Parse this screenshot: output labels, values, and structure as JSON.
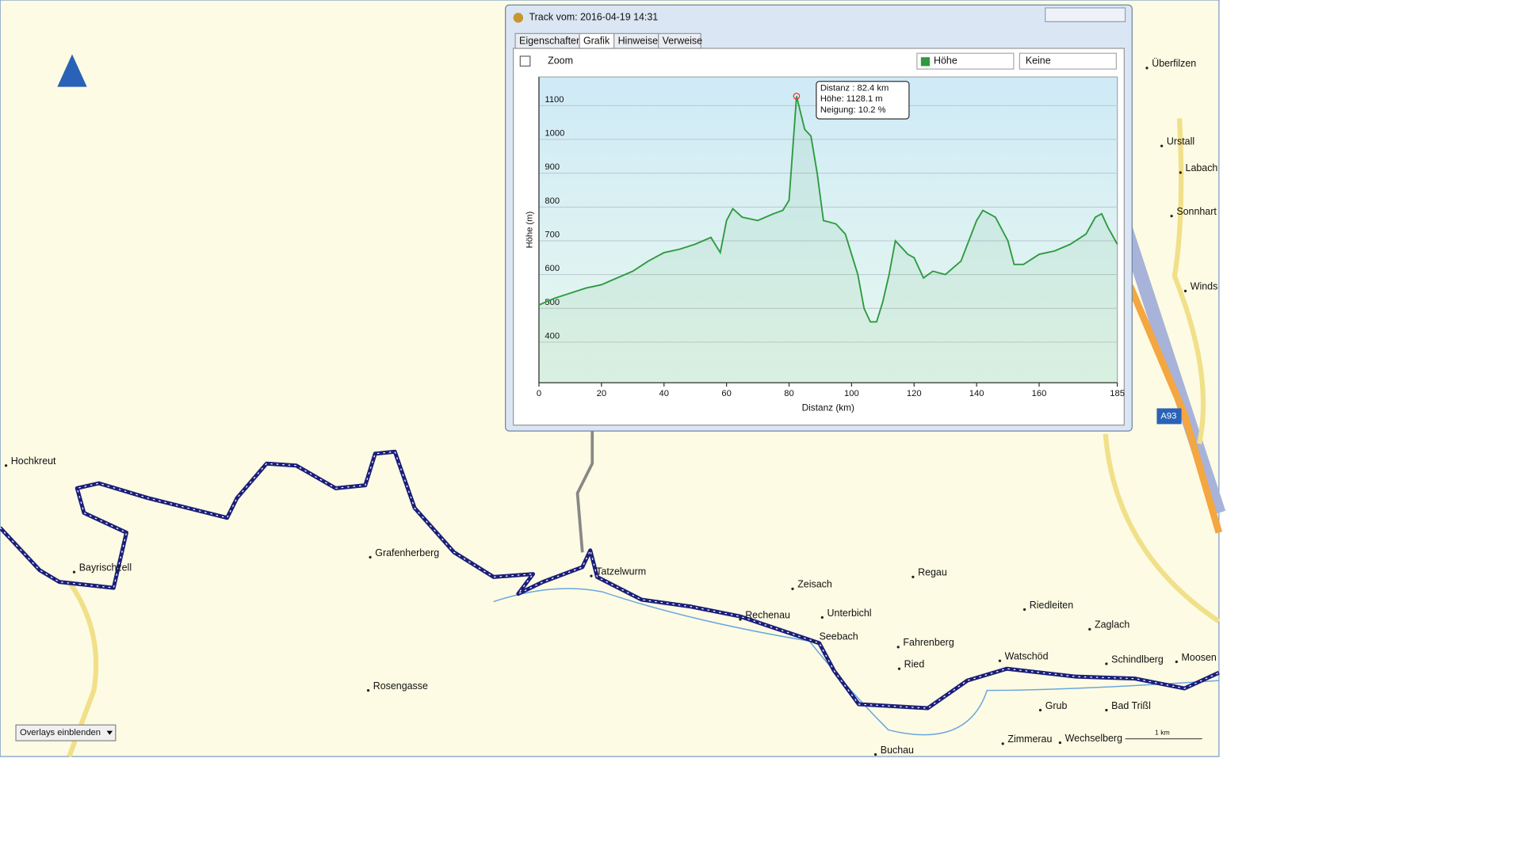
{
  "window": {
    "title": "Track vom: 2016-04-19 14:31",
    "tabs": [
      "Eigenschaften",
      "Grafik",
      "Hinweise",
      "Verweise"
    ],
    "zoom": "Zoom",
    "select1": "Höhe",
    "select2": "Keine"
  },
  "chart_data": {
    "type": "line",
    "xlabel": "Distanz  (km)",
    "ylabel": "Höhe (m)",
    "xlim": [
      0,
      185
    ],
    "ylim": [
      280,
      1185
    ],
    "xticks": [
      0,
      20,
      40,
      60,
      80,
      100,
      120,
      140,
      160,
      185
    ],
    "yticks": [
      400,
      500,
      600,
      700,
      800,
      900,
      1000,
      1100
    ],
    "grid": true,
    "tooltip": [
      "Distanz  : 82.4 km",
      "Höhe: 1128.1 m",
      "Neigung: 10.2 %"
    ],
    "series": [
      {
        "name": "Höhe",
        "color": "#2e9a3e",
        "x": [
          0,
          5,
          10,
          15,
          20,
          25,
          30,
          35,
          40,
          45,
          50,
          55,
          58,
          60,
          62,
          65,
          70,
          75,
          78,
          80,
          82.4,
          85,
          87,
          89,
          91,
          95,
          98,
          100,
          102,
          104,
          106,
          108,
          110,
          112,
          114,
          116,
          118,
          120,
          123,
          126,
          130,
          135,
          140,
          142,
          146,
          150,
          152,
          155,
          160,
          165,
          170,
          175,
          178,
          180,
          182,
          185
        ],
        "values": [
          510,
          530,
          545,
          560,
          570,
          590,
          610,
          640,
          665,
          675,
          690,
          710,
          665,
          760,
          795,
          770,
          760,
          780,
          790,
          820,
          1128,
          1030,
          1010,
          900,
          760,
          750,
          720,
          660,
          600,
          500,
          460,
          460,
          520,
          600,
          700,
          680,
          660,
          650,
          590,
          610,
          600,
          640,
          760,
          790,
          770,
          700,
          630,
          630,
          660,
          670,
          690,
          720,
          770,
          780,
          740,
          690
        ]
      }
    ]
  },
  "map": {
    "labels": [
      "Hochkreut",
      "Bayrischzell",
      "Grafenherberg",
      "Tatzelwurm",
      "Zeisach",
      "Regau",
      "Rechenau",
      "Unterbichl",
      "Seebach",
      "Fahrenberg",
      "Ried",
      "Riedleiten",
      "Zaglach",
      "Watschöd",
      "Schindlberg",
      "Moosen",
      "Grub",
      "Bad Trißl",
      "Zimmerau",
      "Wechselberg",
      "Buchau",
      "Rosengasse",
      "Überfilzen",
      "Urstall",
      "Labach",
      "Sonnhart",
      "Winds"
    ],
    "overlay": "Overlays einblenden",
    "scale": "1 km",
    "road": "A93"
  }
}
